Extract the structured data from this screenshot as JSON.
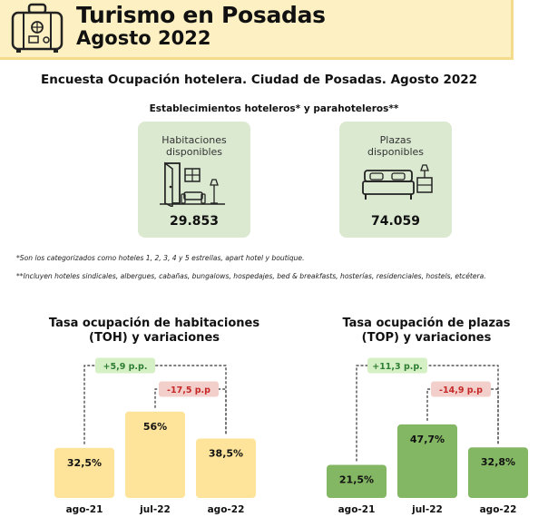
{
  "header": {
    "title": "Turismo en Posadas",
    "subtitle": "Agosto 2022"
  },
  "section_title": "Encuesta Ocupación hotelera. Ciudad de Posadas. Agosto 2022",
  "subsection_title": "Establecimientos hoteleros* y parahoteleros**",
  "cards": [
    {
      "label_line1": "Habitaciones",
      "label_line2": "disponibles",
      "value": "29.853",
      "icon": "room-icon"
    },
    {
      "label_line1": "Plazas",
      "label_line2": "disponibles",
      "value": "74.059",
      "icon": "bed-icon"
    }
  ],
  "notes": [
    "*Son los categorizados como hoteles 1, 2, 3, 4 y 5 estrellas, apart hotel y boutique.",
    "**Incluyen hoteles sindicales, albergues, cabañas, bungalows, hospedajes, bed & breakfasts, hosterías, residenciales, hostels, etcétera."
  ],
  "colors": {
    "header_bg": "#fdf0c2",
    "card_bg": "#dbe9d1",
    "toh_bar": "#fde49a",
    "top_bar": "#84b764",
    "positive_badge": "#d6f0c6",
    "positive_text": "#2e7d32",
    "negative_badge": "#f3cfcb",
    "negative_text": "#c62828"
  },
  "chart_data": [
    {
      "type": "bar",
      "title_line1": "Tasa ocupación de habitaciones",
      "title_line2": "(TOH) y variaciones",
      "categories": [
        "ago-21",
        "jul-22",
        "ago-22"
      ],
      "values": [
        32.5,
        56,
        38.5
      ],
      "value_labels": [
        "32,5%",
        "56%",
        "38,5%"
      ],
      "annotations": [
        {
          "from": "ago-21",
          "to": "ago-22",
          "text": "+5,9 p.p.",
          "sign": "positive"
        },
        {
          "from": "jul-22",
          "to": "ago-22",
          "text": "-17,5 p.p",
          "sign": "negative"
        }
      ],
      "color": "#fde49a"
    },
    {
      "type": "bar",
      "title_line1": "Tasa ocupación de plazas",
      "title_line2": "(TOP) y variaciones",
      "categories": [
        "ago-21",
        "jul-22",
        "ago-22"
      ],
      "values": [
        21.5,
        47.7,
        32.8
      ],
      "value_labels": [
        "21,5%",
        "47,7%",
        "32,8%"
      ],
      "annotations": [
        {
          "from": "ago-21",
          "to": "ago-22",
          "text": "+11,3 p.p.",
          "sign": "positive"
        },
        {
          "from": "jul-22",
          "to": "ago-22",
          "text": "-14,9 p.p",
          "sign": "negative"
        }
      ],
      "color": "#84b764"
    }
  ]
}
